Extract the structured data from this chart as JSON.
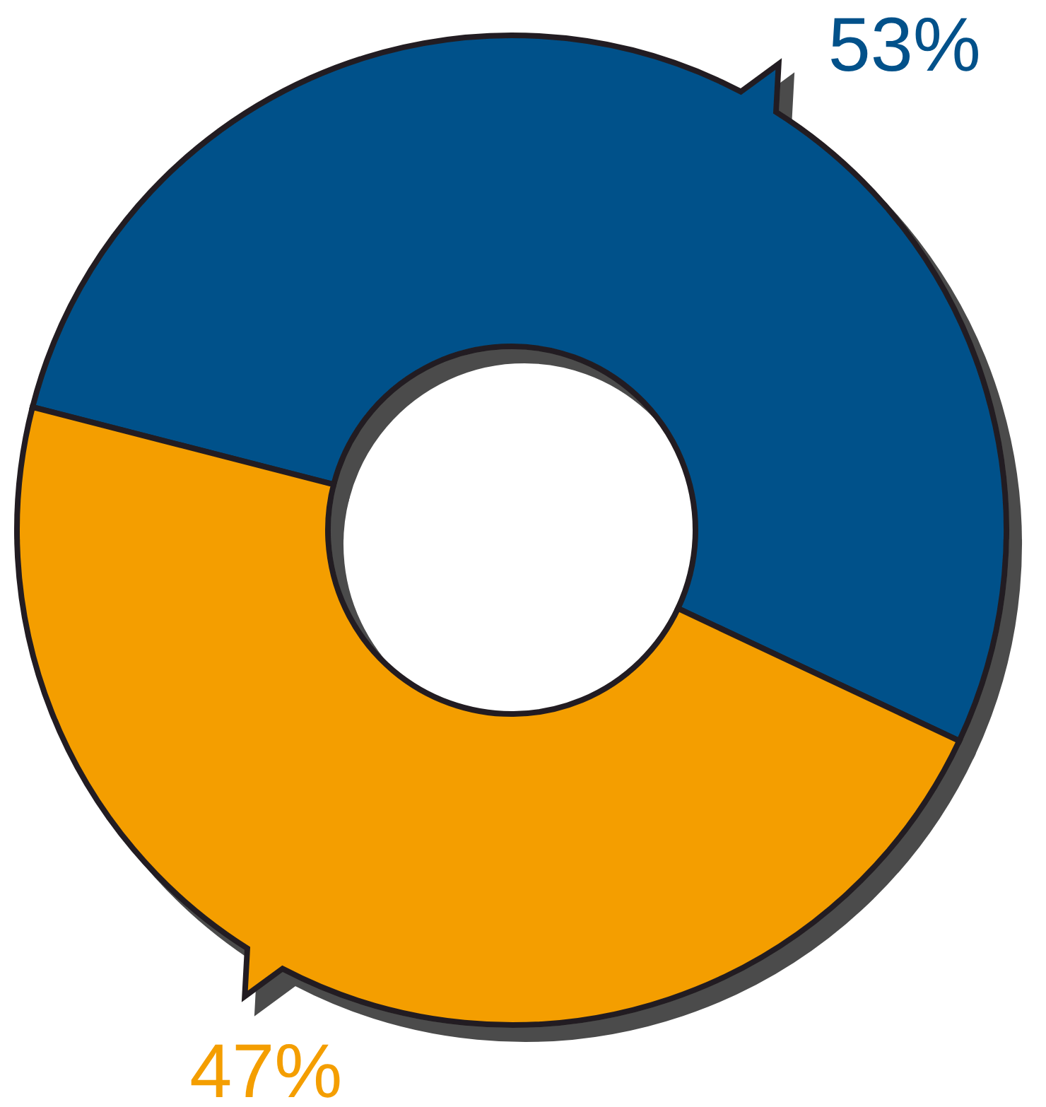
{
  "chart_data": {
    "type": "donut",
    "categories": [
      null,
      null
    ],
    "values": [
      53,
      47
    ],
    "colors": [
      "#02518a",
      "#f49e00"
    ],
    "value_labels": [
      "53%",
      "47%"
    ],
    "legend": false
  }
}
